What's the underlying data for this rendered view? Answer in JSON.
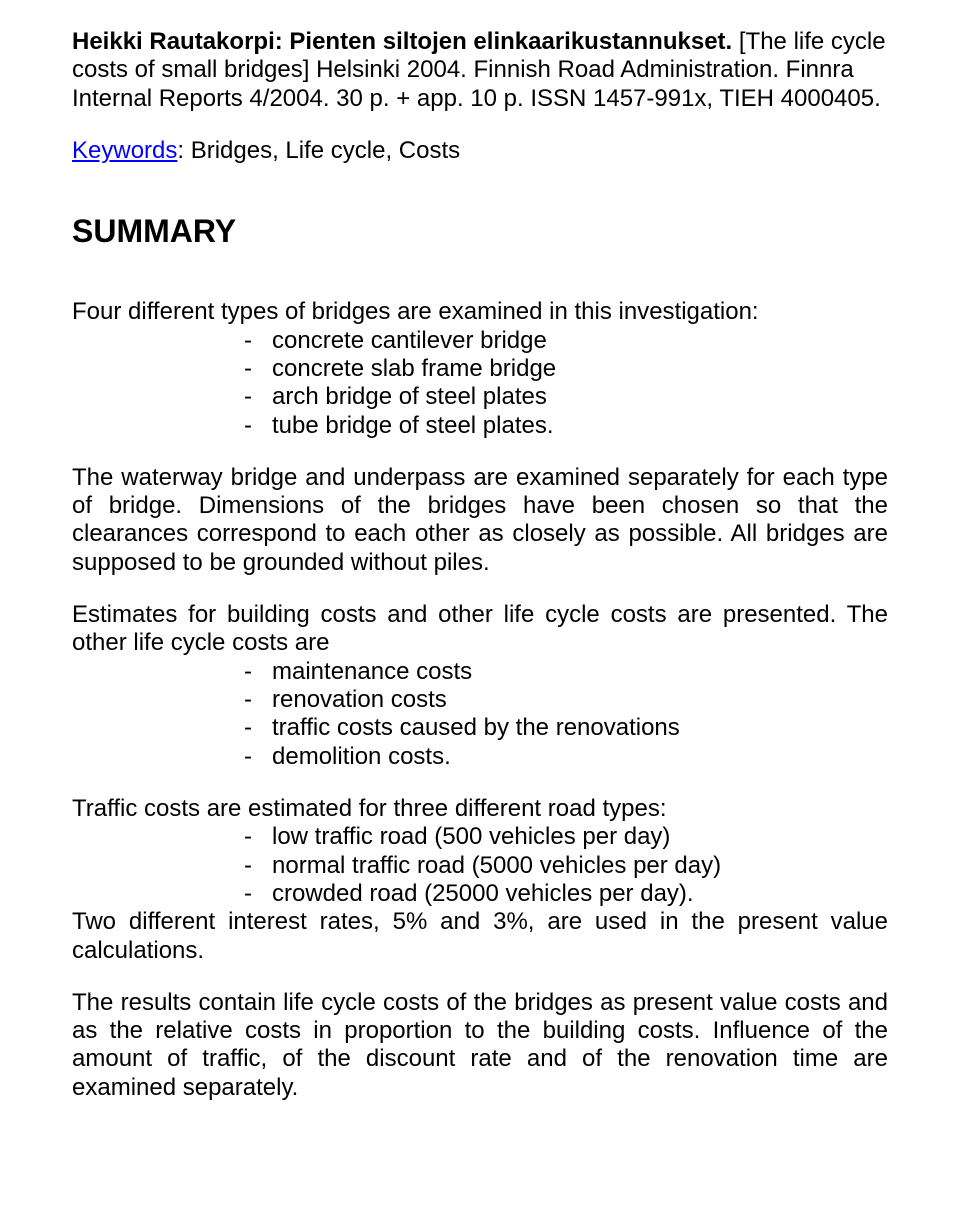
{
  "citation": {
    "bold": "Heikki Rautakorpi: Pienten siltojen elinkaarikustannukset.",
    "rest": " [The life cycle costs of small bridges] Helsinki 2004. Finnish Road Administration. Finnra Internal Reports 4/2004. 30 p. + app. 10 p. ISSN 1457-991x, TIEH 4000405."
  },
  "keywords": {
    "label": "Keywords",
    "value": ": Bridges, Life cycle, Costs"
  },
  "summary_heading": "SUMMARY",
  "intro": {
    "lead": "Four different types of bridges are examined in this investigation:",
    "items": [
      "concrete cantilever bridge",
      "concrete slab frame bridge",
      "arch bridge of steel plates",
      "tube bridge of steel plates."
    ]
  },
  "para2": "The waterway bridge and underpass are examined separately for each type of bridge. Dimensions of the bridges have been chosen so that the clearances correspond to each other as closely as possible. All bridges are supposed to be grounded without piles.",
  "estimates": {
    "lead": "Estimates for building costs and other life cycle costs are presented. The other life cycle costs are",
    "items": [
      "maintenance costs",
      "renovation costs",
      "traffic costs caused by the renovations",
      "demolition costs."
    ]
  },
  "traffic": {
    "lead": "Traffic costs are estimated for three different road types:",
    "items": [
      "low traffic road (500 vehicles per day)",
      "normal traffic road (5000 vehicles per day)",
      "crowded road (25000 vehicles per day)."
    ],
    "tail": "Two different interest rates, 5% and 3%, are used in the present value calculations."
  },
  "results": "The results contain life cycle costs of the bridges as present value costs and as the relative costs in proportion to the building costs. Influence of the amount of traffic, of the discount rate and of the renovation time are examined separately."
}
